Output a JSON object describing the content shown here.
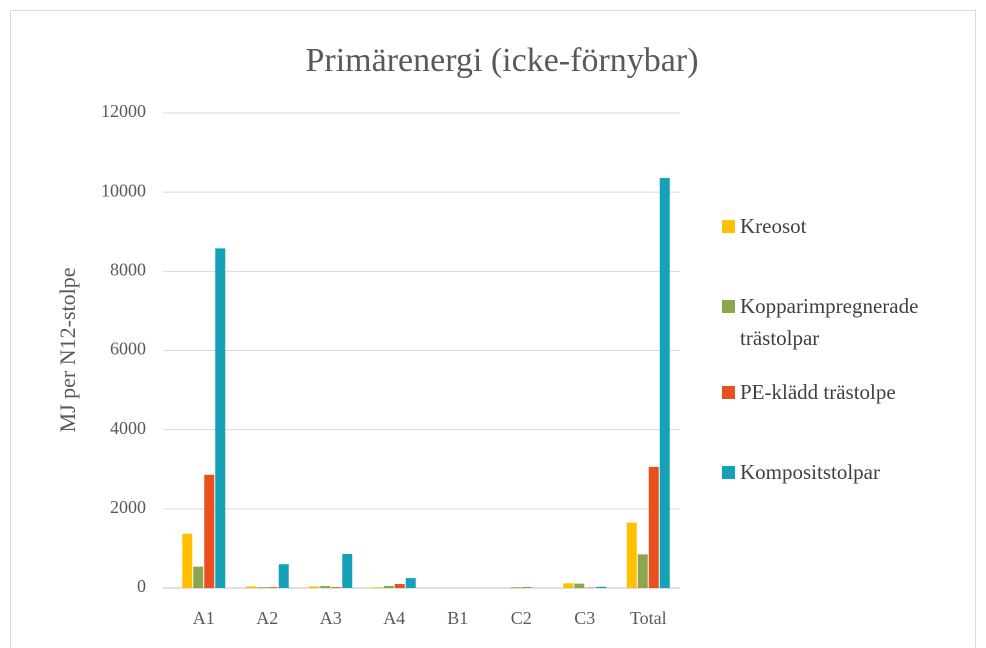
{
  "chart_data": {
    "type": "bar",
    "title": "Primärenergi (icke-förnybar)",
    "y_label": "MJ per N12-stolpe",
    "categories": [
      "A1",
      "A2",
      "A3",
      "A4",
      "B1",
      "C2",
      "C3",
      "Total"
    ],
    "series": [
      {
        "name": "Kreosot",
        "color": "#ffc000",
        "values": [
          1370,
          40,
          40,
          20,
          0,
          0,
          120,
          1650
        ]
      },
      {
        "name": "Kopparimpregnerade trästolpar",
        "color": "#8ca64e",
        "values": [
          540,
          20,
          50,
          50,
          0,
          20,
          110,
          850
        ]
      },
      {
        "name": "PE-klädd trästolpe",
        "color": "#e8501e",
        "values": [
          2860,
          20,
          20,
          100,
          0,
          20,
          10,
          3060
        ]
      },
      {
        "name": "Kompositstolpar",
        "color": "#16a2b6",
        "values": [
          8580,
          600,
          860,
          250,
          0,
          0,
          30,
          10360
        ]
      }
    ],
    "ylim": [
      0,
      12000
    ],
    "yticks": [
      0,
      2000,
      4000,
      6000,
      8000,
      10000,
      12000
    ],
    "grid": true,
    "legend": "right"
  }
}
